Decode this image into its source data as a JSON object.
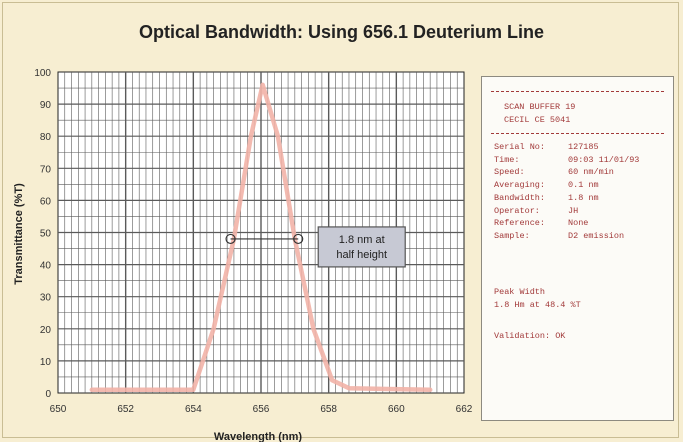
{
  "chart_data": {
    "type": "line",
    "title": "Optical Bandwidth: Using 656.1 Deuterium Line",
    "xlabel": "Wavelength (nm)",
    "ylabel": "Transmittance (%T)",
    "xlim": [
      650,
      662
    ],
    "ylim": [
      0,
      100
    ],
    "x_ticks": [
      650,
      652,
      654,
      656,
      658,
      660,
      662
    ],
    "y_ticks": [
      0,
      10,
      20,
      30,
      40,
      50,
      60,
      70,
      80,
      90,
      100
    ],
    "grid": true,
    "series": [
      {
        "color": "#f2b3a7",
        "points": [
          [
            651.0,
            1
          ],
          [
            654.0,
            1
          ],
          [
            654.6,
            20
          ],
          [
            655.2,
            48
          ],
          [
            655.7,
            80
          ],
          [
            656.05,
            96
          ],
          [
            656.5,
            80
          ],
          [
            657.0,
            48
          ],
          [
            657.55,
            20
          ],
          [
            658.1,
            4
          ],
          [
            658.6,
            1.5
          ],
          [
            661.0,
            1
          ]
        ]
      }
    ],
    "annotation": {
      "text": "1.8 nm at half height",
      "x_start": 655.1,
      "x_end": 657.1,
      "y": 48
    }
  },
  "panel": {
    "header": [
      "SCAN BUFFER 19",
      "CECIL CE 5041"
    ],
    "rows": [
      {
        "key": "Serial No:",
        "value": "127185"
      },
      {
        "key": "Time:",
        "value": "09:03 11/01/93"
      },
      {
        "key": "Speed:",
        "value": "60 nm/min"
      },
      {
        "key": "Averaging:",
        "value": "0.1 nm"
      },
      {
        "key": "Bandwidth:",
        "value": "1.8 nm"
      },
      {
        "key": "Operator:",
        "value": "JH"
      },
      {
        "key": "Reference:",
        "value": "None"
      },
      {
        "key": "Sample:",
        "value": "D2 emission"
      }
    ],
    "peak_label": "Peak Width",
    "peak_value": "1.8 Hm at 48.4 %T",
    "validation": "Validation:   OK"
  }
}
